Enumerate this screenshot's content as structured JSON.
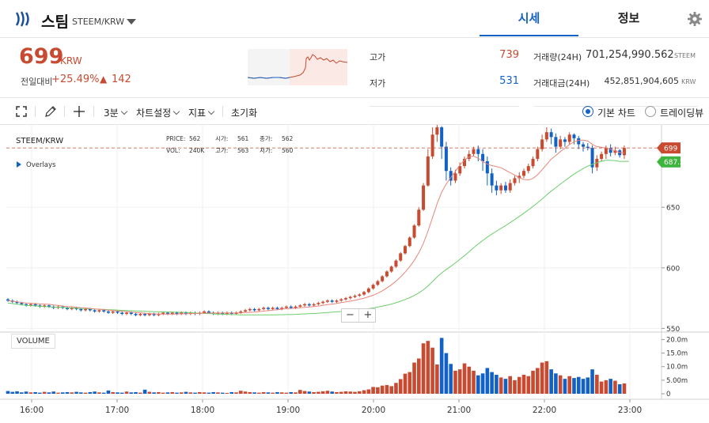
{
  "header": {
    "coin_name": "스팀",
    "pair": "STEEM/KRW",
    "tabs": [
      "시세",
      "정보"
    ]
  },
  "summary": {
    "price": "699",
    "price_unit": "KRW",
    "change_label": "전일대비",
    "change_pct": "+25.49%",
    "change_arrow": "▲",
    "change_abs": "142",
    "high_label": "고가",
    "high_value": "739",
    "low_label": "저가",
    "low_value": "531",
    "volume_label": "거래량(24H)",
    "volume_value": "701,254,990.562",
    "volume_unit": "STEEM",
    "amount_label": "거래대금(24H)",
    "amount_value": "452,851,904,605",
    "amount_unit": "KRW"
  },
  "toolbar": {
    "interval": "3분",
    "chart_settings": "차트설정",
    "indicators": "지표",
    "reset": "초기화",
    "basic_chart": "기본 차트",
    "tradingview": "트레이딩뷰"
  },
  "legend": {
    "symbol": "STEEM/KRW",
    "overlays": "Overlays",
    "price_label": "PRICE:",
    "price_val": "562",
    "open_label": "시가:",
    "open_val": "561",
    "close_label": "종가:",
    "close_val": "562",
    "vol_label": "VOL:",
    "vol_val": "240K",
    "high_label": "고가:",
    "high_val": "563",
    "low_label": "저가:",
    "low_val": "560"
  },
  "volume_panel_label": "VOLUME",
  "colors": {
    "up": "#c84a31",
    "down": "#1261c4",
    "ma_short": "#e8857a",
    "ma_long": "#6ccf6c",
    "accent": "#1261c4"
  },
  "chart_data": {
    "type": "candlestick",
    "x_ticks": [
      "16:00",
      "17:00",
      "18:00",
      "19:00",
      "20:00",
      "21:00",
      "22:00",
      "23:00"
    ],
    "price_ticks": [
      550,
      600,
      650
    ],
    "price_ylim": [
      547,
      718
    ],
    "volume_ticks": [
      "20.0m",
      "15.0m",
      "10.0m",
      "5.00m",
      "0"
    ],
    "volume_ylim": [
      0,
      21
    ],
    "last_price_tag": "699",
    "ma_long_tag": "687.5",
    "candles": [
      [
        574,
        573,
        575,
        572,
        1.0
      ],
      [
        573,
        572,
        574,
        571,
        0.7
      ],
      [
        572,
        571,
        573,
        570,
        0.9
      ],
      [
        571,
        570,
        572,
        569,
        0.5
      ],
      [
        570,
        569,
        571,
        568,
        0.8
      ],
      [
        569,
        570,
        571,
        568,
        0.5
      ],
      [
        570,
        569,
        571,
        568,
        0.6
      ],
      [
        569,
        568,
        570,
        567,
        0.4
      ],
      [
        568,
        569,
        570,
        567,
        0.7
      ],
      [
        569,
        568,
        570,
        567,
        0.5
      ],
      [
        568,
        567,
        569,
        566,
        0.8
      ],
      [
        567,
        568,
        569,
        566,
        0.4
      ],
      [
        568,
        567,
        569,
        566,
        0.5
      ],
      [
        567,
        566,
        568,
        565,
        0.6
      ],
      [
        566,
        567,
        568,
        565,
        0.5
      ],
      [
        567,
        566,
        568,
        565,
        0.7
      ],
      [
        566,
        565,
        567,
        564,
        0.5
      ],
      [
        565,
        566,
        567,
        564,
        0.4
      ],
      [
        566,
        565,
        567,
        564,
        0.6
      ],
      [
        565,
        564,
        566,
        563,
        0.8
      ],
      [
        564,
        565,
        566,
        563,
        0.5
      ],
      [
        565,
        564,
        566,
        563,
        0.4
      ],
      [
        564,
        563,
        565,
        562,
        1.2
      ],
      [
        563,
        564,
        565,
        562,
        0.6
      ],
      [
        564,
        563,
        565,
        562,
        0.5
      ],
      [
        563,
        562,
        564,
        561,
        0.4
      ],
      [
        562,
        563,
        564,
        561,
        0.8
      ],
      [
        563,
        562,
        564,
        561,
        0.5
      ],
      [
        562,
        561,
        563,
        560,
        0.6
      ],
      [
        561,
        562,
        563,
        560,
        0.4
      ],
      [
        562,
        561,
        563,
        560,
        1.5
      ],
      [
        561,
        562,
        563,
        560,
        0.7
      ],
      [
        562,
        561,
        563,
        560,
        0.5
      ],
      [
        561,
        562,
        563,
        560,
        0.6
      ],
      [
        562,
        563,
        564,
        561,
        0.4
      ],
      [
        563,
        562,
        564,
        561,
        0.5
      ],
      [
        562,
        563,
        564,
        561,
        0.6
      ],
      [
        563,
        562,
        564,
        561,
        0.4
      ],
      [
        562,
        563,
        564,
        561,
        0.5
      ],
      [
        563,
        562,
        564,
        561,
        0.7
      ],
      [
        562,
        563,
        564,
        561,
        0.5
      ],
      [
        563,
        562,
        564,
        561,
        0.4
      ],
      [
        562,
        563,
        564,
        561,
        0.6
      ],
      [
        563,
        564,
        565,
        562,
        0.5
      ],
      [
        564,
        563,
        565,
        562,
        0.4
      ],
      [
        563,
        562,
        564,
        561,
        0.6
      ],
      [
        562,
        563,
        564,
        561,
        0.5
      ],
      [
        563,
        562,
        564,
        561,
        0.4
      ],
      [
        562,
        563,
        564,
        561,
        0.3
      ],
      [
        563,
        562,
        564,
        561,
        0.6
      ],
      [
        562,
        563,
        564,
        561,
        0.5
      ],
      [
        563,
        564,
        565,
        562,
        1.1
      ],
      [
        564,
        565,
        566,
        563,
        0.8
      ],
      [
        565,
        566,
        567,
        564,
        0.6
      ],
      [
        566,
        565,
        567,
        564,
        0.5
      ],
      [
        565,
        566,
        567,
        564,
        0.4
      ],
      [
        566,
        567,
        568,
        565,
        0.6
      ],
      [
        567,
        566,
        568,
        565,
        0.5
      ],
      [
        566,
        567,
        568,
        565,
        0.4
      ],
      [
        567,
        566,
        568,
        565,
        0.6
      ],
      [
        566,
        567,
        568,
        565,
        0.5
      ],
      [
        567,
        568,
        569,
        566,
        0.4
      ],
      [
        568,
        567,
        569,
        566,
        0.6
      ],
      [
        567,
        568,
        569,
        566,
        0.5
      ],
      [
        568,
        569,
        570,
        567,
        1.4
      ],
      [
        569,
        570,
        571,
        568,
        1.0
      ],
      [
        570,
        569,
        571,
        568,
        0.8
      ],
      [
        569,
        570,
        571,
        568,
        0.6
      ],
      [
        570,
        571,
        572,
        569,
        0.7
      ],
      [
        571,
        572,
        573,
        570,
        0.9
      ],
      [
        572,
        573,
        574,
        571,
        1.1
      ],
      [
        573,
        572,
        574,
        571,
        0.8
      ],
      [
        572,
        573,
        574,
        571,
        0.6
      ],
      [
        573,
        574,
        575,
        572,
        0.7
      ],
      [
        574,
        575,
        576,
        573,
        0.9
      ],
      [
        575,
        576,
        577,
        574,
        0.8
      ],
      [
        576,
        577,
        578,
        575,
        0.7
      ],
      [
        577,
        578,
        579,
        576,
        0.9
      ],
      [
        578,
        580,
        581,
        577,
        1.3
      ],
      [
        580,
        583,
        584,
        579,
        1.6
      ],
      [
        583,
        586,
        587,
        582,
        2.5
      ],
      [
        586,
        589,
        590,
        585,
        2.4
      ],
      [
        589,
        593,
        594,
        588,
        3.0
      ],
      [
        593,
        597,
        598,
        592,
        3.2
      ],
      [
        597,
        601,
        602,
        596,
        2.8
      ],
      [
        601,
        606,
        607,
        600,
        4.0
      ],
      [
        606,
        612,
        613,
        605,
        5.4
      ],
      [
        612,
        618,
        619,
        611,
        7.4
      ],
      [
        618,
        625,
        626,
        617,
        8.0
      ],
      [
        625,
        635,
        636,
        624,
        11.5
      ],
      [
        635,
        648,
        650,
        634,
        13.0
      ],
      [
        648,
        668,
        670,
        647,
        18.6
      ],
      [
        668,
        692,
        698,
        667,
        19.5
      ],
      [
        692,
        710,
        716,
        690,
        17.0
      ],
      [
        710,
        716,
        718,
        704,
        10.8
      ],
      [
        716,
        700,
        717,
        690,
        20.6
      ],
      [
        700,
        680,
        704,
        672,
        15.0
      ],
      [
        680,
        672,
        683,
        668,
        11.0
      ],
      [
        672,
        678,
        681,
        670,
        8.5
      ],
      [
        678,
        684,
        687,
        676,
        9.0
      ],
      [
        684,
        690,
        692,
        682,
        11.2
      ],
      [
        690,
        694,
        697,
        688,
        10.0
      ],
      [
        694,
        698,
        700,
        692,
        8.5
      ],
      [
        698,
        694,
        701,
        688,
        6.8
      ],
      [
        694,
        688,
        698,
        680,
        7.5
      ],
      [
        688,
        678,
        692,
        668,
        9.5
      ],
      [
        678,
        668,
        682,
        662,
        8.0
      ],
      [
        668,
        664,
        672,
        660,
        7.0
      ],
      [
        664,
        668,
        670,
        661,
        6.0
      ],
      [
        668,
        664,
        671,
        662,
        5.5
      ],
      [
        664,
        670,
        673,
        662,
        6.5
      ],
      [
        670,
        674,
        676,
        668,
        5.0
      ],
      [
        674,
        676,
        679,
        670,
        6.2
      ],
      [
        676,
        680,
        682,
        674,
        7.0
      ],
      [
        680,
        684,
        686,
        678,
        6.5
      ],
      [
        684,
        690,
        692,
        682,
        8.5
      ],
      [
        690,
        698,
        700,
        688,
        9.5
      ],
      [
        698,
        706,
        710,
        696,
        11.5
      ],
      [
        706,
        712,
        716,
        704,
        12.0
      ],
      [
        712,
        708,
        715,
        702,
        9.0
      ],
      [
        708,
        700,
        711,
        695,
        7.5
      ],
      [
        700,
        706,
        709,
        698,
        6.8
      ],
      [
        706,
        704,
        708,
        700,
        5.5
      ],
      [
        704,
        710,
        712,
        702,
        6.5
      ],
      [
        710,
        707,
        711,
        702,
        5.8
      ],
      [
        707,
        702,
        709,
        698,
        6.2
      ],
      [
        702,
        700,
        704,
        696,
        5.5
      ],
      [
        700,
        699,
        703,
        697,
        6.0
      ],
      [
        699,
        683,
        701,
        678,
        9.0
      ],
      [
        683,
        690,
        693,
        680,
        7.0
      ],
      [
        690,
        694,
        696,
        688,
        4.5
      ],
      [
        694,
        699,
        701,
        690,
        5.0
      ],
      [
        699,
        695,
        702,
        692,
        5.5
      ],
      [
        695,
        697,
        700,
        693,
        4.8
      ],
      [
        697,
        693,
        698,
        691,
        3.5
      ],
      [
        693,
        699,
        701,
        690,
        3.8
      ]
    ]
  }
}
